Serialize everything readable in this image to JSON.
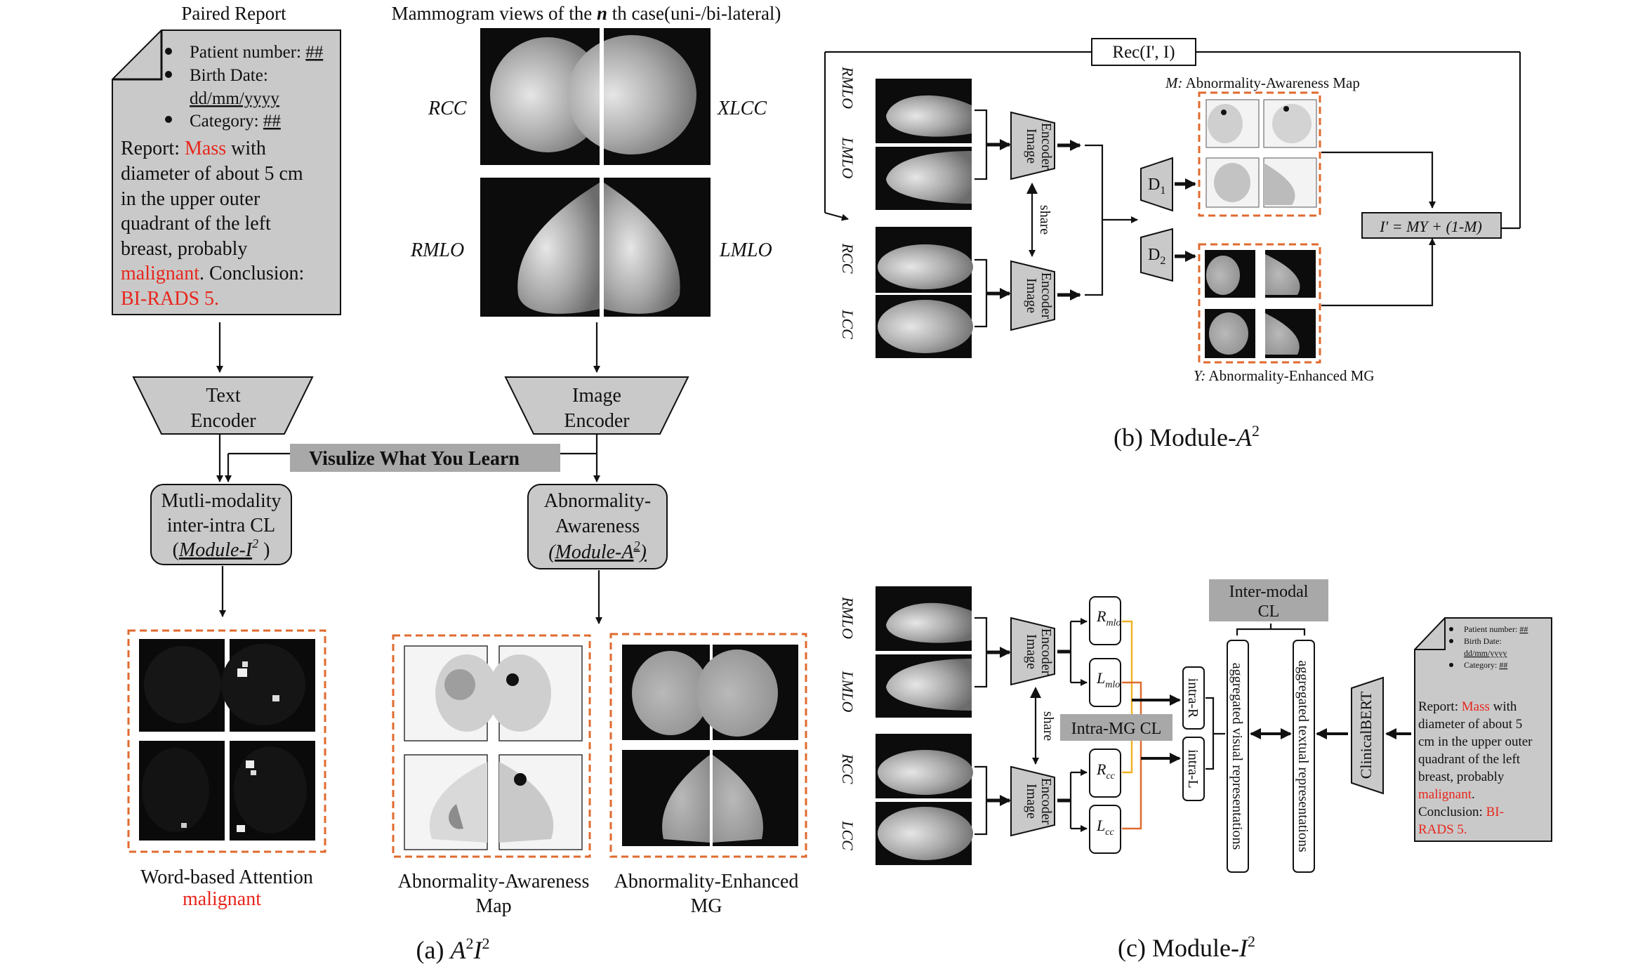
{
  "panel_a": {
    "paired_report_title": "Paired Report",
    "mammogram_title_pre": "Mammogram views of the ",
    "mammogram_title_n": "n",
    "mammogram_title_post": " th case(uni-/bi-lateral)",
    "report": {
      "bullet1_label": "Patient number: ",
      "bullet1_value": "##",
      "bullet2_label": "Birth Date:",
      "bullet2_value": "dd/mm/yyyy",
      "bullet3_label": "Category: ",
      "bullet3_value": "##",
      "line1_pre": "Report: ",
      "line1_red": "Mass",
      "line1_post": " with",
      "line2": "diameter of about 5 cm",
      "line3": "in the upper outer",
      "line4": "quadrant of the left",
      "line5": "breast, probably",
      "line6_red": "malignant",
      "line6_post": ". Conclusion:",
      "line7_red": "BI-RADS 5."
    },
    "view_labels": {
      "rcc": "RCC",
      "xlcc": "XLCC",
      "rmlo": "RMLO",
      "lmlo": "LMLO"
    },
    "text_encoder_1": "Text",
    "text_encoder_2": "Encoder",
    "image_encoder_1": "Image",
    "image_encoder_2": "Encoder",
    "visualize": "Visulize What You Learn",
    "cl_box_1": "Mutli-modality",
    "cl_box_2": "inter-intra CL",
    "cl_box_3_pre": "(",
    "cl_box_3_mod": "Module-I",
    "cl_box_3_sup": "2",
    "cl_box_3_post": " )",
    "aa_box_1": "Abnormality-",
    "aa_box_2": "Awareness",
    "aa_box_3_mod": "(Module-A",
    "aa_box_3_sup": "2",
    "aa_box_3_post": ")",
    "word_attention_1": "Word-based Attention",
    "word_attention_2": "malignant",
    "aa_map_1": "Abnormality-Awareness",
    "aa_map_2": "Map",
    "ae_mg_1": "Abnormality-Enhanced",
    "ae_mg_2": "MG",
    "caption_pre": "(a) ",
    "caption_a": "A",
    "caption_a_sup": "2",
    "caption_i": "I",
    "caption_i_sup": "2"
  },
  "panel_b": {
    "rec": "Rec(I', I)",
    "views": [
      "RMLO",
      "LMLO",
      "RCC",
      "LCC"
    ],
    "image_encoder_1": "Image",
    "image_encoder_2": "Encoder",
    "share": "share",
    "d1": "D",
    "d1_sub": "1",
    "d2": "D",
    "d2_sub": "2",
    "m_label_pre": "M:",
    "m_label": " Abnormality-Awareness Map",
    "y_label_pre": "Y:",
    "y_label": " Abnormality-Enhanced MG",
    "formula": "I' = MY + (1-M)",
    "caption_pre": "(b) Module-",
    "caption_a": "A",
    "caption_sup": "2"
  },
  "panel_c": {
    "views": [
      "RMLO",
      "LMLO",
      "RCC",
      "LCC"
    ],
    "image_encoder_1": "Image",
    "image_encoder_2": "Encoder",
    "share": "share",
    "r_mlo": "R",
    "r_mlo_sub": "mlo",
    "l_mlo": "L",
    "l_mlo_sub": "mlo",
    "r_cc": "R",
    "r_cc_sub": "cc",
    "l_cc": "L",
    "l_cc_sub": "cc",
    "intra_mg": "Intra-MG CL",
    "intra_r": "intra-R",
    "intra_l": "intra-L",
    "inter_modal_1": "Inter-modal",
    "inter_modal_2": "CL",
    "agg_visual": "aggregated visual representations",
    "agg_textual": "aggregated textual representations",
    "clinicalbert": "ClinicalBERT",
    "report": {
      "bullet1_label": "Patient number: ",
      "bullet1_value": "##",
      "bullet2_label": "Birth Date:",
      "bullet2_value": "dd/mm/yyyy",
      "bullet3_label": "Category: ",
      "bullet3_value": "##",
      "line1_pre": "Report: ",
      "line1_red": "Mass",
      "line1_post": " with",
      "line2": "diameter of about 5",
      "line3": "cm in the upper outer",
      "line4": "quadrant of the left",
      "line5": "breast, probably",
      "line6_red": "malignant",
      "line6_post": ".",
      "line7_pre": "Conclusion: ",
      "line7_red": "BI-",
      "line8_red": "RADS 5."
    },
    "caption_pre": "(c) Module-",
    "caption_i": "I",
    "caption_sup": "2"
  }
}
